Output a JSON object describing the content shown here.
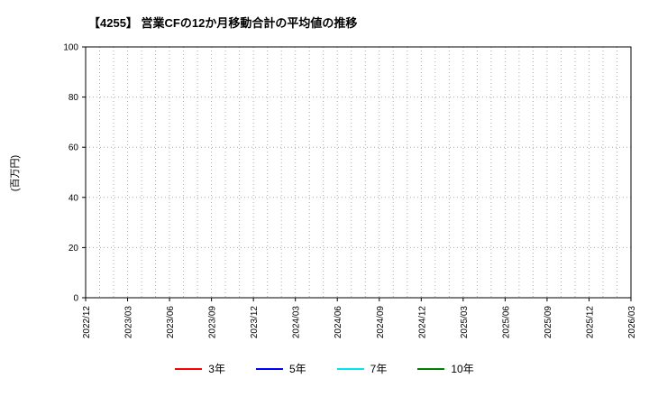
{
  "header": {
    "title": "【4255】 営業CFの12か月移動合計の平均値の推移"
  },
  "axes": {
    "ylabel": "(百万円)"
  },
  "chart_data": {
    "type": "line",
    "title": "【4255】 営業CFの12か月移動合計の平均値の推移",
    "ylabel": "(百万円)",
    "ylim": [
      0,
      100
    ],
    "yticks": [
      0,
      20,
      40,
      60,
      80,
      100
    ],
    "x_labels": [
      "2022/12",
      "2023/03",
      "2023/06",
      "2023/09",
      "2023/12",
      "2024/03",
      "2024/06",
      "2024/09",
      "2024/12",
      "2025/03",
      "2025/06",
      "2025/09",
      "2025/12",
      "2026/03"
    ],
    "minor_gridlines_per_label_interval": 3,
    "grid": true,
    "grid_style": "dotted",
    "grid_color": "#aaaaaa",
    "legend_position": "bottom",
    "series": [
      {
        "name": "3年",
        "color": "#ff0000",
        "values": []
      },
      {
        "name": "5年",
        "color": "#0000ff",
        "values": []
      },
      {
        "name": "7年",
        "color": "#00e5ee",
        "values": []
      },
      {
        "name": "10年",
        "color": "#007f00",
        "values": []
      }
    ]
  }
}
